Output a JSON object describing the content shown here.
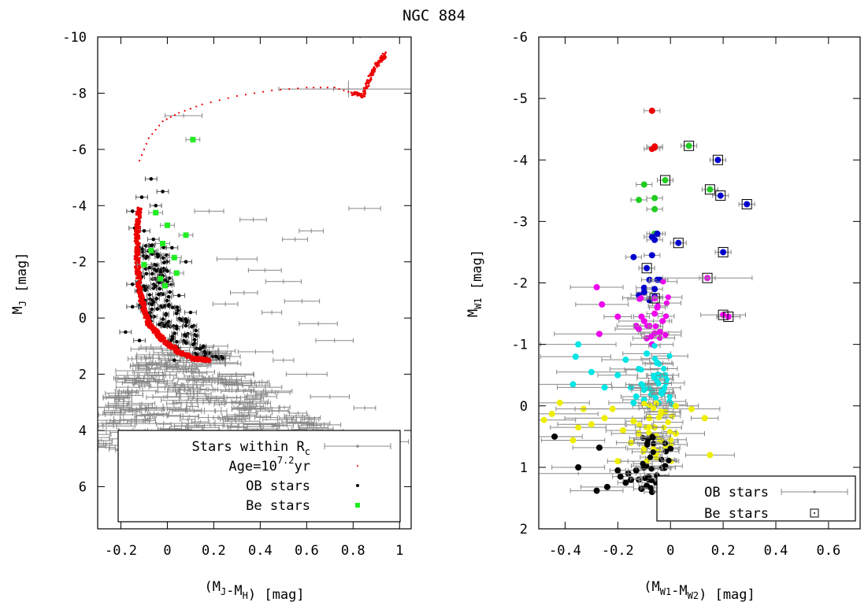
{
  "title": "NGC 884",
  "chart_data": [
    {
      "type": "scatter",
      "xlabel": "(M_J-M_H) [mag]",
      "ylabel": "M_J [mag]",
      "xlim": [
        -0.3,
        1.05
      ],
      "ylim": [
        7.5,
        -10
      ],
      "y_inverted": true,
      "xticks": [
        -0.2,
        0,
        0.2,
        0.4,
        0.6,
        0.8,
        1
      ],
      "xtick_labels": [
        "-0.2",
        "0",
        "0.2",
        "0.4",
        "0.6",
        "0.8",
        "1"
      ],
      "yticks": [
        -10,
        -8,
        -6,
        -4,
        -2,
        0,
        2,
        4,
        6
      ],
      "ytick_labels": [
        "-10",
        "-8",
        "-6",
        "-4",
        "-2",
        "0",
        "2",
        "4",
        "6"
      ],
      "legend": {
        "position": "bottom-right",
        "entries": [
          {
            "label": "Stars within R",
            "sub": "c",
            "marker": "errorbar",
            "color": "#888888"
          },
          {
            "label": "Age=10",
            "sup": "7.2",
            "suffix": "yr",
            "marker": "dot",
            "color": "#ee0000"
          },
          {
            "label": "OB stars",
            "marker": "dot",
            "color": "#000000"
          },
          {
            "label": "Be stars",
            "marker": "square",
            "color": "#22ee22"
          }
        ]
      },
      "series": [
        {
          "name": "Stars within R_c",
          "color": "#888888",
          "points": [
            [
              0.83,
              -10.1
            ],
            [
              0.78,
              -8.15
            ],
            [
              0.07,
              -7.2
            ],
            [
              0.18,
              -3.8
            ],
            [
              0.37,
              -3.5
            ],
            [
              0.55,
              -2.8
            ],
            [
              0.62,
              -3.1
            ],
            [
              0.85,
              -3.9
            ],
            [
              0.3,
              -2.1
            ],
            [
              0.42,
              -1.7
            ],
            [
              0.5,
              -1.3
            ],
            [
              0.33,
              -0.9
            ],
            [
              0.25,
              -0.5
            ],
            [
              0.45,
              -0.2
            ],
            [
              0.58,
              -0.6
            ],
            [
              0.65,
              0.2
            ],
            [
              0.72,
              0.8
            ],
            [
              0.2,
              1.0
            ],
            [
              0.38,
              1.2
            ],
            [
              0.5,
              1.5
            ],
            [
              0.6,
              2.0
            ],
            [
              0.3,
              2.3
            ],
            [
              0.45,
              2.6
            ],
            [
              0.7,
              2.8
            ],
            [
              0.25,
              3.0
            ],
            [
              0.85,
              3.2
            ],
            [
              0.4,
              3.5
            ],
            [
              0.55,
              3.7
            ],
            [
              0.95,
              4.4
            ],
            [
              0.15,
              3.9
            ],
            [
              0.3,
              4.3
            ],
            [
              0.62,
              4.2
            ]
          ],
          "xerr": 0.04,
          "yerr": 0.08,
          "cloud": {
            "x_range": [
              -0.1,
              1.0
            ],
            "y_range": [
              1.0,
              4.8
            ],
            "count": 400
          }
        },
        {
          "name": "Age=10^7.2 yr isochrone",
          "color": "#ee0000",
          "curve": [
            [
              -0.12,
              -3.9
            ],
            [
              -0.13,
              -3.0
            ],
            [
              -0.13,
              -2.0
            ],
            [
              -0.12,
              -1.0
            ],
            [
              -0.1,
              -0.3
            ],
            [
              -0.08,
              0.2
            ],
            [
              -0.04,
              0.6
            ],
            [
              0.0,
              0.9
            ],
            [
              0.05,
              1.2
            ],
            [
              0.12,
              1.45
            ],
            [
              0.18,
              1.5
            ]
          ],
          "giant_branch": [
            [
              -0.12,
              -5.6
            ],
            [
              -0.08,
              -6.4
            ],
            [
              -0.02,
              -7.0
            ],
            [
              0.05,
              -7.3
            ],
            [
              0.15,
              -7.6
            ],
            [
              0.3,
              -7.9
            ],
            [
              0.45,
              -8.1
            ],
            [
              0.6,
              -8.2
            ],
            [
              0.72,
              -8.2
            ],
            [
              0.8,
              -8.0
            ],
            [
              0.84,
              -7.9
            ],
            [
              0.86,
              -8.3
            ],
            [
              0.88,
              -8.7
            ],
            [
              0.9,
              -9.0
            ],
            [
              0.92,
              -9.2
            ],
            [
              0.94,
              -9.4
            ]
          ]
        },
        {
          "name": "OB stars",
          "color": "#000000",
          "points": [
            [
              -0.07,
              -4.95
            ],
            [
              -0.11,
              -4.3
            ],
            [
              -0.02,
              -4.5
            ],
            [
              -0.05,
              -4.0
            ],
            [
              -0.15,
              -3.8
            ],
            [
              -0.14,
              -3.2
            ],
            [
              -0.1,
              -3.1
            ],
            [
              -0.06,
              -2.8
            ],
            [
              0.02,
              -2.5
            ],
            [
              0.08,
              -2.0
            ],
            [
              -0.15,
              -1.2
            ],
            [
              -0.15,
              -0.4
            ],
            [
              -0.18,
              0.5
            ],
            [
              -0.12,
              0.8
            ],
            [
              0.0,
              -1.3
            ],
            [
              0.05,
              -0.8
            ],
            [
              0.1,
              -0.2
            ],
            [
              0.04,
              0.3
            ],
            [
              0.14,
              1.1
            ],
            [
              0.03,
              1.5
            ]
          ],
          "band": {
            "x_offset": [
              0.0,
              0.12
            ],
            "y_range": [
              -2.6,
              1.5
            ],
            "count": 160
          }
        },
        {
          "name": "Be stars",
          "color": "#22ee22",
          "points": [
            [
              0.11,
              -6.35
            ],
            [
              -0.05,
              -3.75
            ],
            [
              0.0,
              -3.3
            ],
            [
              -0.02,
              -2.65
            ],
            [
              0.08,
              -2.95
            ],
            [
              -0.07,
              -2.4
            ],
            [
              0.03,
              -2.15
            ],
            [
              -0.1,
              -1.9
            ],
            [
              -0.03,
              -1.4
            ],
            [
              0.04,
              -1.6
            ],
            [
              -0.01,
              -1.15
            ]
          ]
        }
      ]
    },
    {
      "type": "scatter",
      "xlabel": "(M_W1-M_W2) [mag]",
      "ylabel": "M_W1 [mag]",
      "xlim": [
        -0.5,
        0.72
      ],
      "ylim": [
        2,
        -6
      ],
      "y_inverted": true,
      "xticks": [
        -0.4,
        -0.2,
        0,
        0.2,
        0.4,
        0.6
      ],
      "xtick_labels": [
        "-0.4",
        "-0.2",
        "0",
        "0.2",
        "0.4",
        "0.6"
      ],
      "yticks": [
        -6,
        -5,
        -4,
        -3,
        -2,
        -1,
        0,
        1,
        2
      ],
      "ytick_labels": [
        "-6",
        "-5",
        "-4",
        "-3",
        "-2",
        "-1",
        "0",
        "1",
        "2"
      ],
      "legend": {
        "position": "bottom-right",
        "entries": [
          {
            "label": "OB stars",
            "marker": "errorbar",
            "color": "#888888"
          },
          {
            "label": "Be stars",
            "marker": "open-square",
            "color": "#000000"
          }
        ]
      },
      "series": [
        {
          "name": "red",
          "color": "#ee0000",
          "points": [
            [
              -0.07,
              -4.8
            ],
            [
              -0.06,
              -4.2
            ],
            [
              -0.07,
              -4.18
            ],
            [
              -0.06,
              -4.22
            ]
          ]
        },
        {
          "name": "green",
          "color": "#22cc22",
          "points": [
            [
              0.07,
              -4.23
            ],
            [
              -0.1,
              -3.6
            ],
            [
              -0.06,
              -3.38
            ],
            [
              -0.12,
              -3.35
            ],
            [
              -0.02,
              -3.67
            ],
            [
              -0.06,
              -3.2
            ],
            [
              0.15,
              -3.52
            ],
            [
              -0.06,
              -2.8
            ]
          ]
        },
        {
          "name": "blue",
          "color": "#0000cc",
          "points": [
            [
              0.18,
              -4.0
            ],
            [
              0.19,
              -3.42
            ],
            [
              0.29,
              -3.28
            ],
            [
              -0.07,
              -2.75
            ],
            [
              -0.06,
              -2.7
            ],
            [
              0.03,
              -2.65
            ],
            [
              -0.05,
              -2.8
            ],
            [
              -0.14,
              -2.42
            ],
            [
              -0.07,
              -2.45
            ],
            [
              0.2,
              -2.5
            ],
            [
              -0.09,
              -2.24
            ],
            [
              -0.08,
              -2.05
            ],
            [
              -0.05,
              -2.05
            ],
            [
              -0.1,
              -1.92
            ],
            [
              -0.06,
              -1.9
            ],
            [
              -0.04,
              -2.05
            ],
            [
              -0.12,
              -1.8
            ],
            [
              -0.06,
              -1.78
            ],
            [
              -0.08,
              -1.72
            ],
            [
              -0.1,
              -1.85
            ]
          ]
        },
        {
          "name": "magenta",
          "color": "#ee00ee",
          "points": [
            [
              -0.28,
              -1.93
            ],
            [
              -0.26,
              -1.65
            ],
            [
              -0.2,
              -1.45
            ],
            [
              -0.27,
              -1.17
            ],
            [
              0.14,
              -2.08
            ],
            [
              0.2,
              -1.48
            ],
            [
              0.22,
              -1.45
            ],
            [
              -0.06,
              -1.75
            ],
            [
              -0.1,
              -1.38
            ],
            [
              -0.08,
              -1.3
            ],
            [
              -0.03,
              -1.38
            ],
            [
              -0.06,
              -1.5
            ],
            [
              -0.12,
              -1.25
            ],
            [
              -0.06,
              -1.18
            ],
            [
              -0.09,
              -1.1
            ],
            [
              -0.04,
              -1.2
            ],
            [
              -0.11,
              -1.45
            ],
            [
              -0.05,
              -1.6
            ],
            [
              -0.13,
              -1.3
            ],
            [
              -0.07,
              -1.0
            ]
          ]
        },
        {
          "name": "cyan",
          "color": "#00e5e5",
          "points": [
            [
              -0.35,
              -1.0
            ],
            [
              -0.36,
              -0.8
            ],
            [
              -0.3,
              -0.55
            ],
            [
              -0.37,
              -0.35
            ],
            [
              -0.25,
              -0.3
            ],
            [
              -0.2,
              -0.5
            ],
            [
              -0.15,
              -0.3
            ],
            [
              -0.12,
              -0.6
            ],
            [
              -0.09,
              -0.85
            ],
            [
              -0.06,
              -0.45
            ],
            [
              -0.1,
              -0.1
            ],
            [
              -0.03,
              -0.2
            ],
            [
              -0.08,
              0.0
            ],
            [
              -0.14,
              -0.05
            ],
            [
              -0.05,
              -0.7
            ],
            [
              -0.17,
              -0.75
            ],
            [
              -0.11,
              -0.35
            ],
            [
              -0.02,
              -0.5
            ],
            [
              -0.07,
              -0.25
            ],
            [
              -0.13,
              -0.15
            ]
          ]
        },
        {
          "name": "yellow",
          "color": "#eeee00",
          "points": [
            [
              -0.48,
              0.23
            ],
            [
              -0.45,
              0.13
            ],
            [
              -0.42,
              -0.05
            ],
            [
              -0.35,
              0.35
            ],
            [
              -0.37,
              0.56
            ],
            [
              -0.3,
              0.3
            ],
            [
              -0.33,
              0.05
            ],
            [
              -0.25,
              0.2
            ],
            [
              -0.22,
              0.05
            ],
            [
              -0.18,
              0.4
            ],
            [
              -0.15,
              0.6
            ],
            [
              -0.1,
              0.7
            ],
            [
              -0.12,
              0.45
            ],
            [
              -0.06,
              0.35
            ],
            [
              -0.04,
              0.55
            ],
            [
              -0.08,
              0.2
            ],
            [
              -0.02,
              0.1
            ],
            [
              0.02,
              0.45
            ],
            [
              0.13,
              0.2
            ],
            [
              0.08,
              0.05
            ],
            [
              0.15,
              0.8
            ],
            [
              -0.2,
              0.9
            ],
            [
              -0.14,
              0.25
            ],
            [
              -0.09,
              0.9
            ],
            [
              0.02,
              0.0
            ]
          ]
        },
        {
          "name": "black",
          "color": "#000000",
          "points": [
            [
              -0.44,
              0.5
            ],
            [
              -0.35,
              1.0
            ],
            [
              -0.27,
              0.68
            ],
            [
              -0.28,
              1.38
            ],
            [
              -0.24,
              1.32
            ],
            [
              -0.2,
              1.05
            ],
            [
              -0.16,
              1.1
            ],
            [
              -0.12,
              1.2
            ],
            [
              -0.09,
              1.3
            ],
            [
              -0.07,
              1.4
            ],
            [
              -0.05,
              1.15
            ],
            [
              -0.02,
              0.98
            ],
            [
              0.0,
              0.7
            ],
            [
              -0.17,
              1.25
            ],
            [
              -0.13,
              1.05
            ],
            [
              -0.1,
              1.0
            ],
            [
              -0.15,
              1.2
            ],
            [
              -0.19,
              1.15
            ],
            [
              -0.11,
              1.35
            ],
            [
              -0.08,
              1.2
            ]
          ]
        },
        {
          "name": "Be stars (boxed)",
          "color": "#000000",
          "points": [
            [
              0.07,
              -4.23
            ],
            [
              0.18,
              -4.0
            ],
            [
              -0.02,
              -3.67
            ],
            [
              0.15,
              -3.52
            ],
            [
              0.19,
              -3.42
            ],
            [
              0.29,
              -3.28
            ],
            [
              0.03,
              -2.65
            ],
            [
              0.2,
              -2.5
            ],
            [
              -0.09,
              -2.24
            ],
            [
              0.14,
              -2.08
            ],
            [
              -0.06,
              -1.75
            ],
            [
              0.2,
              -1.48
            ],
            [
              0.22,
              -1.45
            ]
          ]
        }
      ]
    }
  ]
}
